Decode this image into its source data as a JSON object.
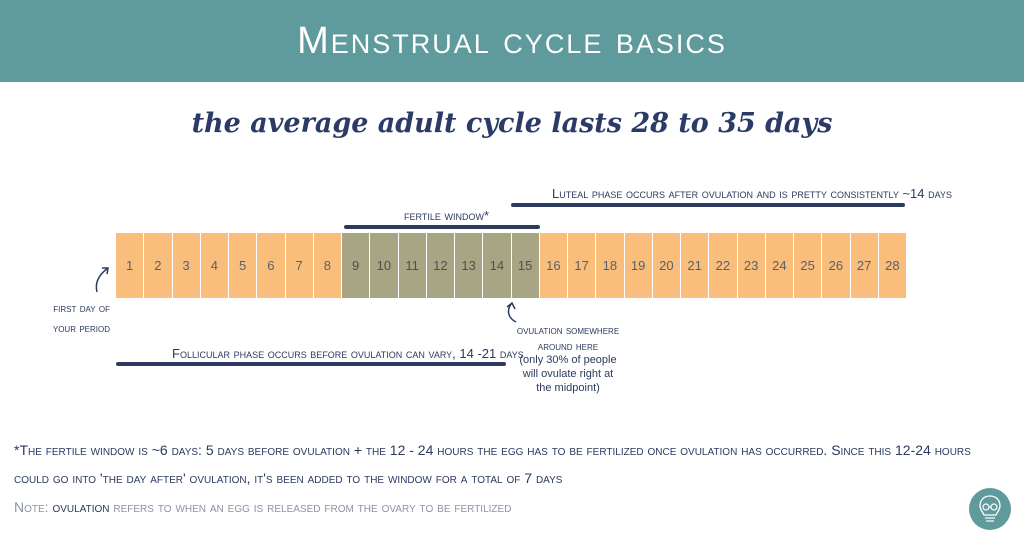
{
  "header": {
    "title": "Menstrual cycle basics"
  },
  "subtitle": "the average adult cycle lasts 28 to 35 days",
  "luteal_label": "Luteal phase occurs after ovulation and is pretty consistently ~14 days",
  "fertile_label": "fertile window*",
  "days": [
    "1",
    "2",
    "3",
    "4",
    "5",
    "6",
    "7",
    "8",
    "9",
    "10",
    "11",
    "12",
    "13",
    "14",
    "15",
    "16",
    "17",
    "18",
    "19",
    "20",
    "21",
    "22",
    "23",
    "24",
    "25",
    "26",
    "27",
    "28"
  ],
  "fertile_window_days": [
    9,
    15
  ],
  "first_day_note": {
    "line1": "first day of",
    "line2": "your period"
  },
  "ovulation_note": {
    "line1": "ovulation somewhere",
    "line2": "around here"
  },
  "ovulation_detail": "(only 30% of people will ovulate right at the midpoint)",
  "follicular_label": "Follicular phase occurs before ovulation can vary, 14 -21 days",
  "footnote": "*The fertile window is ~6 days: 5 days before ovulation + the 12 - 24 hours the egg has to be fertilized once ovulation has occurred. Since this 12-24 hours could go into 'the day after' ovulation, it's been added to the window for a total of 7 days",
  "note": {
    "prefix": "Note:",
    "keyword": "ovulation",
    "rest": "refers to when an egg is released from the ovary to be fertilized"
  },
  "colors": {
    "header": "#5f9b9c",
    "day": "#f9bd7c",
    "fertile": "#a8a584",
    "navy": "#2b3a5e"
  }
}
